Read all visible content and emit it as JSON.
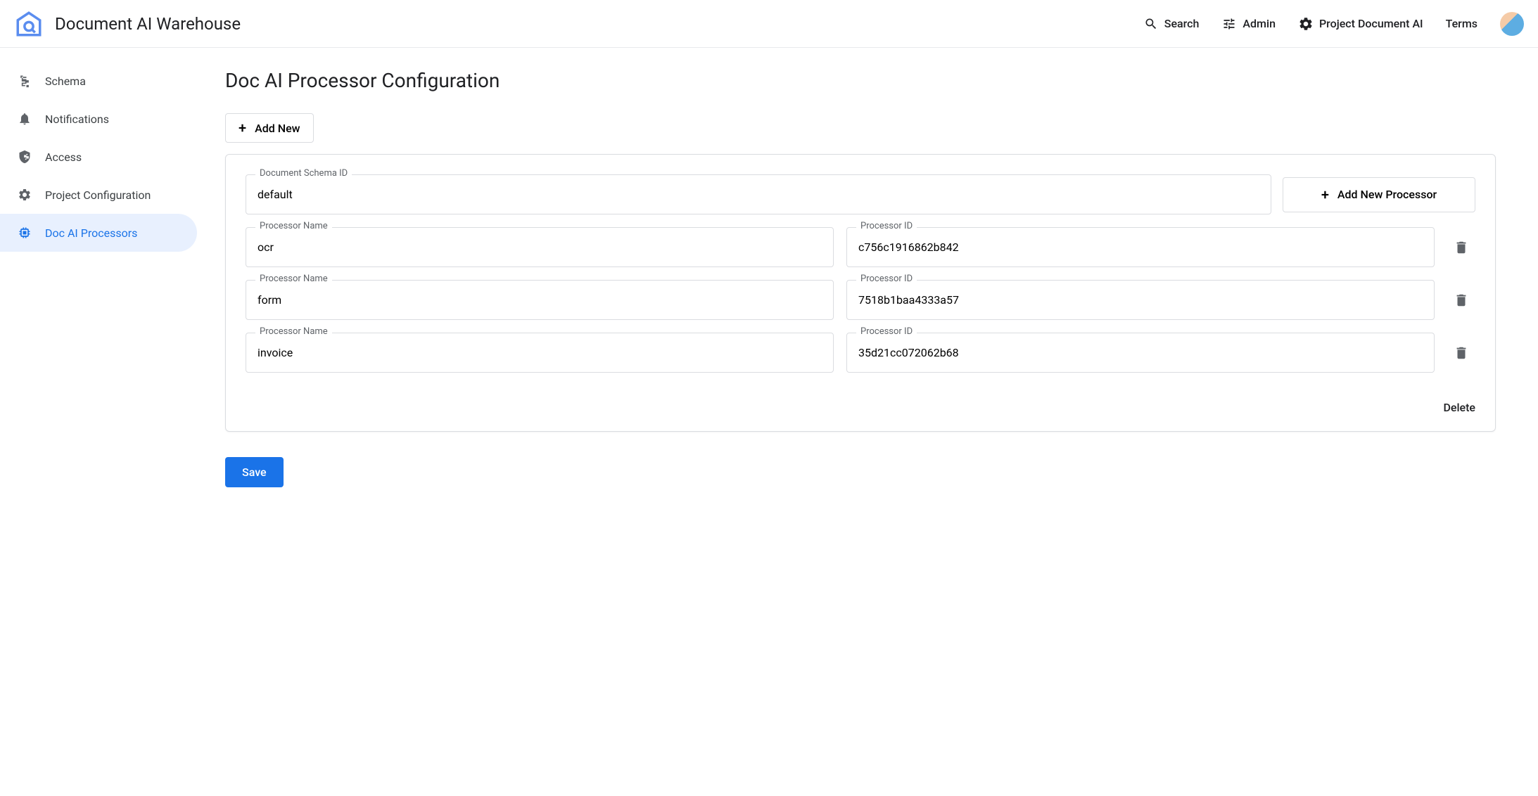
{
  "header": {
    "appTitle": "Document AI Warehouse",
    "search": "Search",
    "admin": "Admin",
    "project": "Project Document AI",
    "terms": "Terms"
  },
  "sidebar": {
    "items": [
      {
        "label": "Schema"
      },
      {
        "label": "Notifications"
      },
      {
        "label": "Access"
      },
      {
        "label": "Project Configuration"
      },
      {
        "label": "Doc AI Processors"
      }
    ]
  },
  "main": {
    "pageTitle": "Doc AI Processor Configuration",
    "addNewLabel": "Add New",
    "schemaLabel": "Document Schema ID",
    "schemaValue": "default",
    "addProcessorLabel": "Add New Processor",
    "processorNameLabel": "Processor Name",
    "processorIdLabel": "Processor ID",
    "processors": [
      {
        "name": "ocr",
        "id": "c756c1916862b842"
      },
      {
        "name": "form",
        "id": "7518b1baa4333a57"
      },
      {
        "name": "invoice",
        "id": "35d21cc072062b68"
      }
    ],
    "deleteLabel": "Delete",
    "saveLabel": "Save"
  },
  "colors": {
    "primary": "#1a73e8",
    "textPrimary": "#202124",
    "textSecondary": "#5f6368",
    "border": "#dadce0",
    "activeBg": "#e8f0fe"
  }
}
